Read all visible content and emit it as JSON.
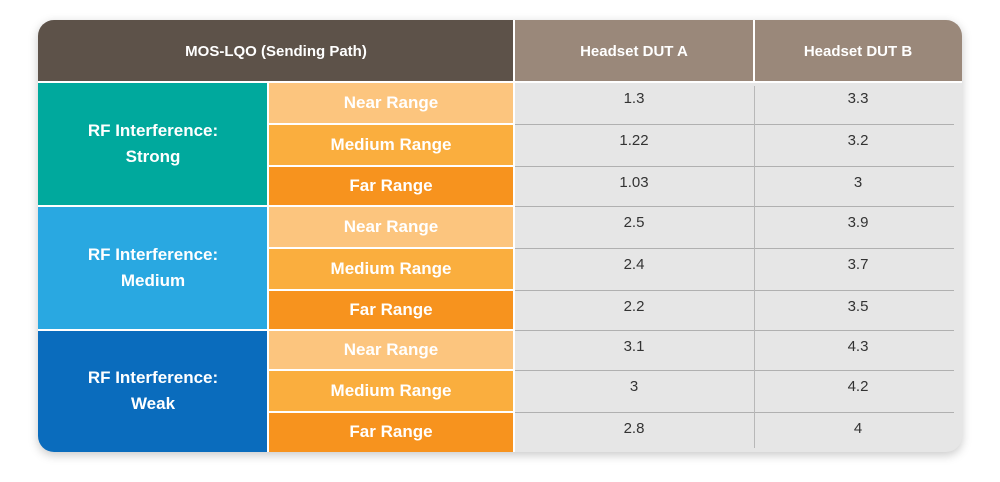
{
  "chart_data": {
    "type": "table",
    "header": {
      "corner": "MOS-LQO (Sending Path)",
      "columns": [
        "Headset DUT A",
        "Headset DUT B"
      ]
    },
    "groups": [
      {
        "label_line1": "RF Interference:",
        "label_line2": "Strong",
        "color": "#00a99d",
        "rows": [
          {
            "range": "Near Range",
            "a": "1.3",
            "b": "3.3"
          },
          {
            "range": "Medium Range",
            "a": "1.22",
            "b": "3.2"
          },
          {
            "range": "Far Range",
            "a": "1.03",
            "b": "3"
          }
        ]
      },
      {
        "label_line1": "RF Interference:",
        "label_line2": "Medium",
        "color": "#29a8e1",
        "rows": [
          {
            "range": "Near Range",
            "a": "2.5",
            "b": "3.9"
          },
          {
            "range": "Medium Range",
            "a": "2.4",
            "b": "3.7"
          },
          {
            "range": "Far Range",
            "a": "2.2",
            "b": "3.5"
          }
        ]
      },
      {
        "label_line1": "RF Interference:",
        "label_line2": "Weak",
        "color": "#0a6cbd",
        "rows": [
          {
            "range": "Near Range",
            "a": "3.1",
            "b": "4.3"
          },
          {
            "range": "Medium Range",
            "a": "3",
            "b": "4.2"
          },
          {
            "range": "Far Range",
            "a": "2.8",
            "b": "4"
          }
        ]
      }
    ],
    "range_colors": [
      "#fcc57e",
      "#faae3e",
      "#f7931e"
    ]
  }
}
